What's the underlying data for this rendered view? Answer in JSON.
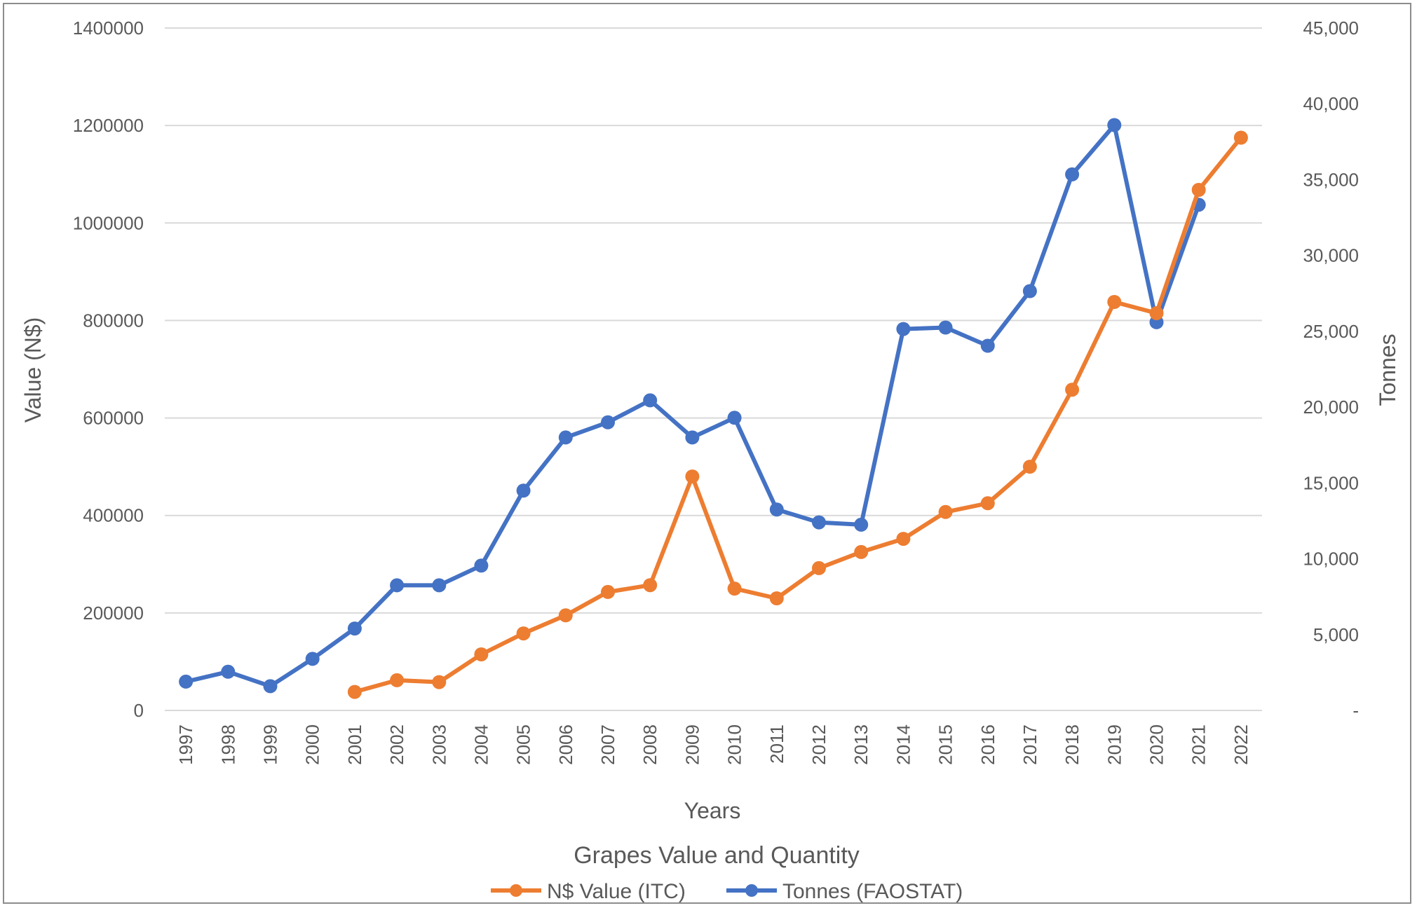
{
  "chart_data": {
    "type": "line",
    "title": "Grapes Value and Quantity",
    "xlabel": "Years",
    "ylabel": "Value (N$)",
    "y2label": "Tonnes",
    "categories": [
      "1997",
      "1998",
      "1999",
      "2000",
      "2001",
      "2002",
      "2003",
      "2004",
      "2005",
      "2006",
      "2007",
      "2008",
      "2009",
      "2010",
      "2011",
      "2012",
      "2013",
      "2014",
      "2015",
      "2016",
      "2017",
      "2018",
      "2019",
      "2020",
      "2021",
      "2022"
    ],
    "ylim": [
      0,
      1400000
    ],
    "y2lim": [
      0,
      45000
    ],
    "y_ticks": [
      "0",
      "200000",
      "400000",
      "600000",
      "800000",
      "1000000",
      "1200000",
      "1400000"
    ],
    "y2_ticks": [
      "-",
      "5,000",
      "10,000",
      "15,000",
      "20,000",
      "25,000",
      "30,000",
      "35,000",
      "40,000",
      "45,000"
    ],
    "grid": true,
    "legend_position": "bottom",
    "series": [
      {
        "name": "N$ Value (ITC)",
        "axis": "left",
        "color": "#ed7d31",
        "values": [
          null,
          null,
          null,
          null,
          38000,
          62000,
          58000,
          115000,
          158000,
          195000,
          243000,
          257000,
          480000,
          250000,
          230000,
          292000,
          325000,
          352000,
          407000,
          425000,
          500000,
          658000,
          838000,
          815000,
          1068000,
          1175000
        ]
      },
      {
        "name": "Tonnes (FAOSTAT)",
        "axis": "right",
        "color": "#4472c4",
        "values": [
          1900,
          2550,
          1600,
          3400,
          5400,
          8250,
          8250,
          9550,
          14500,
          18000,
          19000,
          20450,
          18000,
          19300,
          13250,
          12400,
          12250,
          25150,
          25250,
          24050,
          27650,
          35350,
          38600,
          25600,
          33350,
          null
        ]
      }
    ]
  }
}
